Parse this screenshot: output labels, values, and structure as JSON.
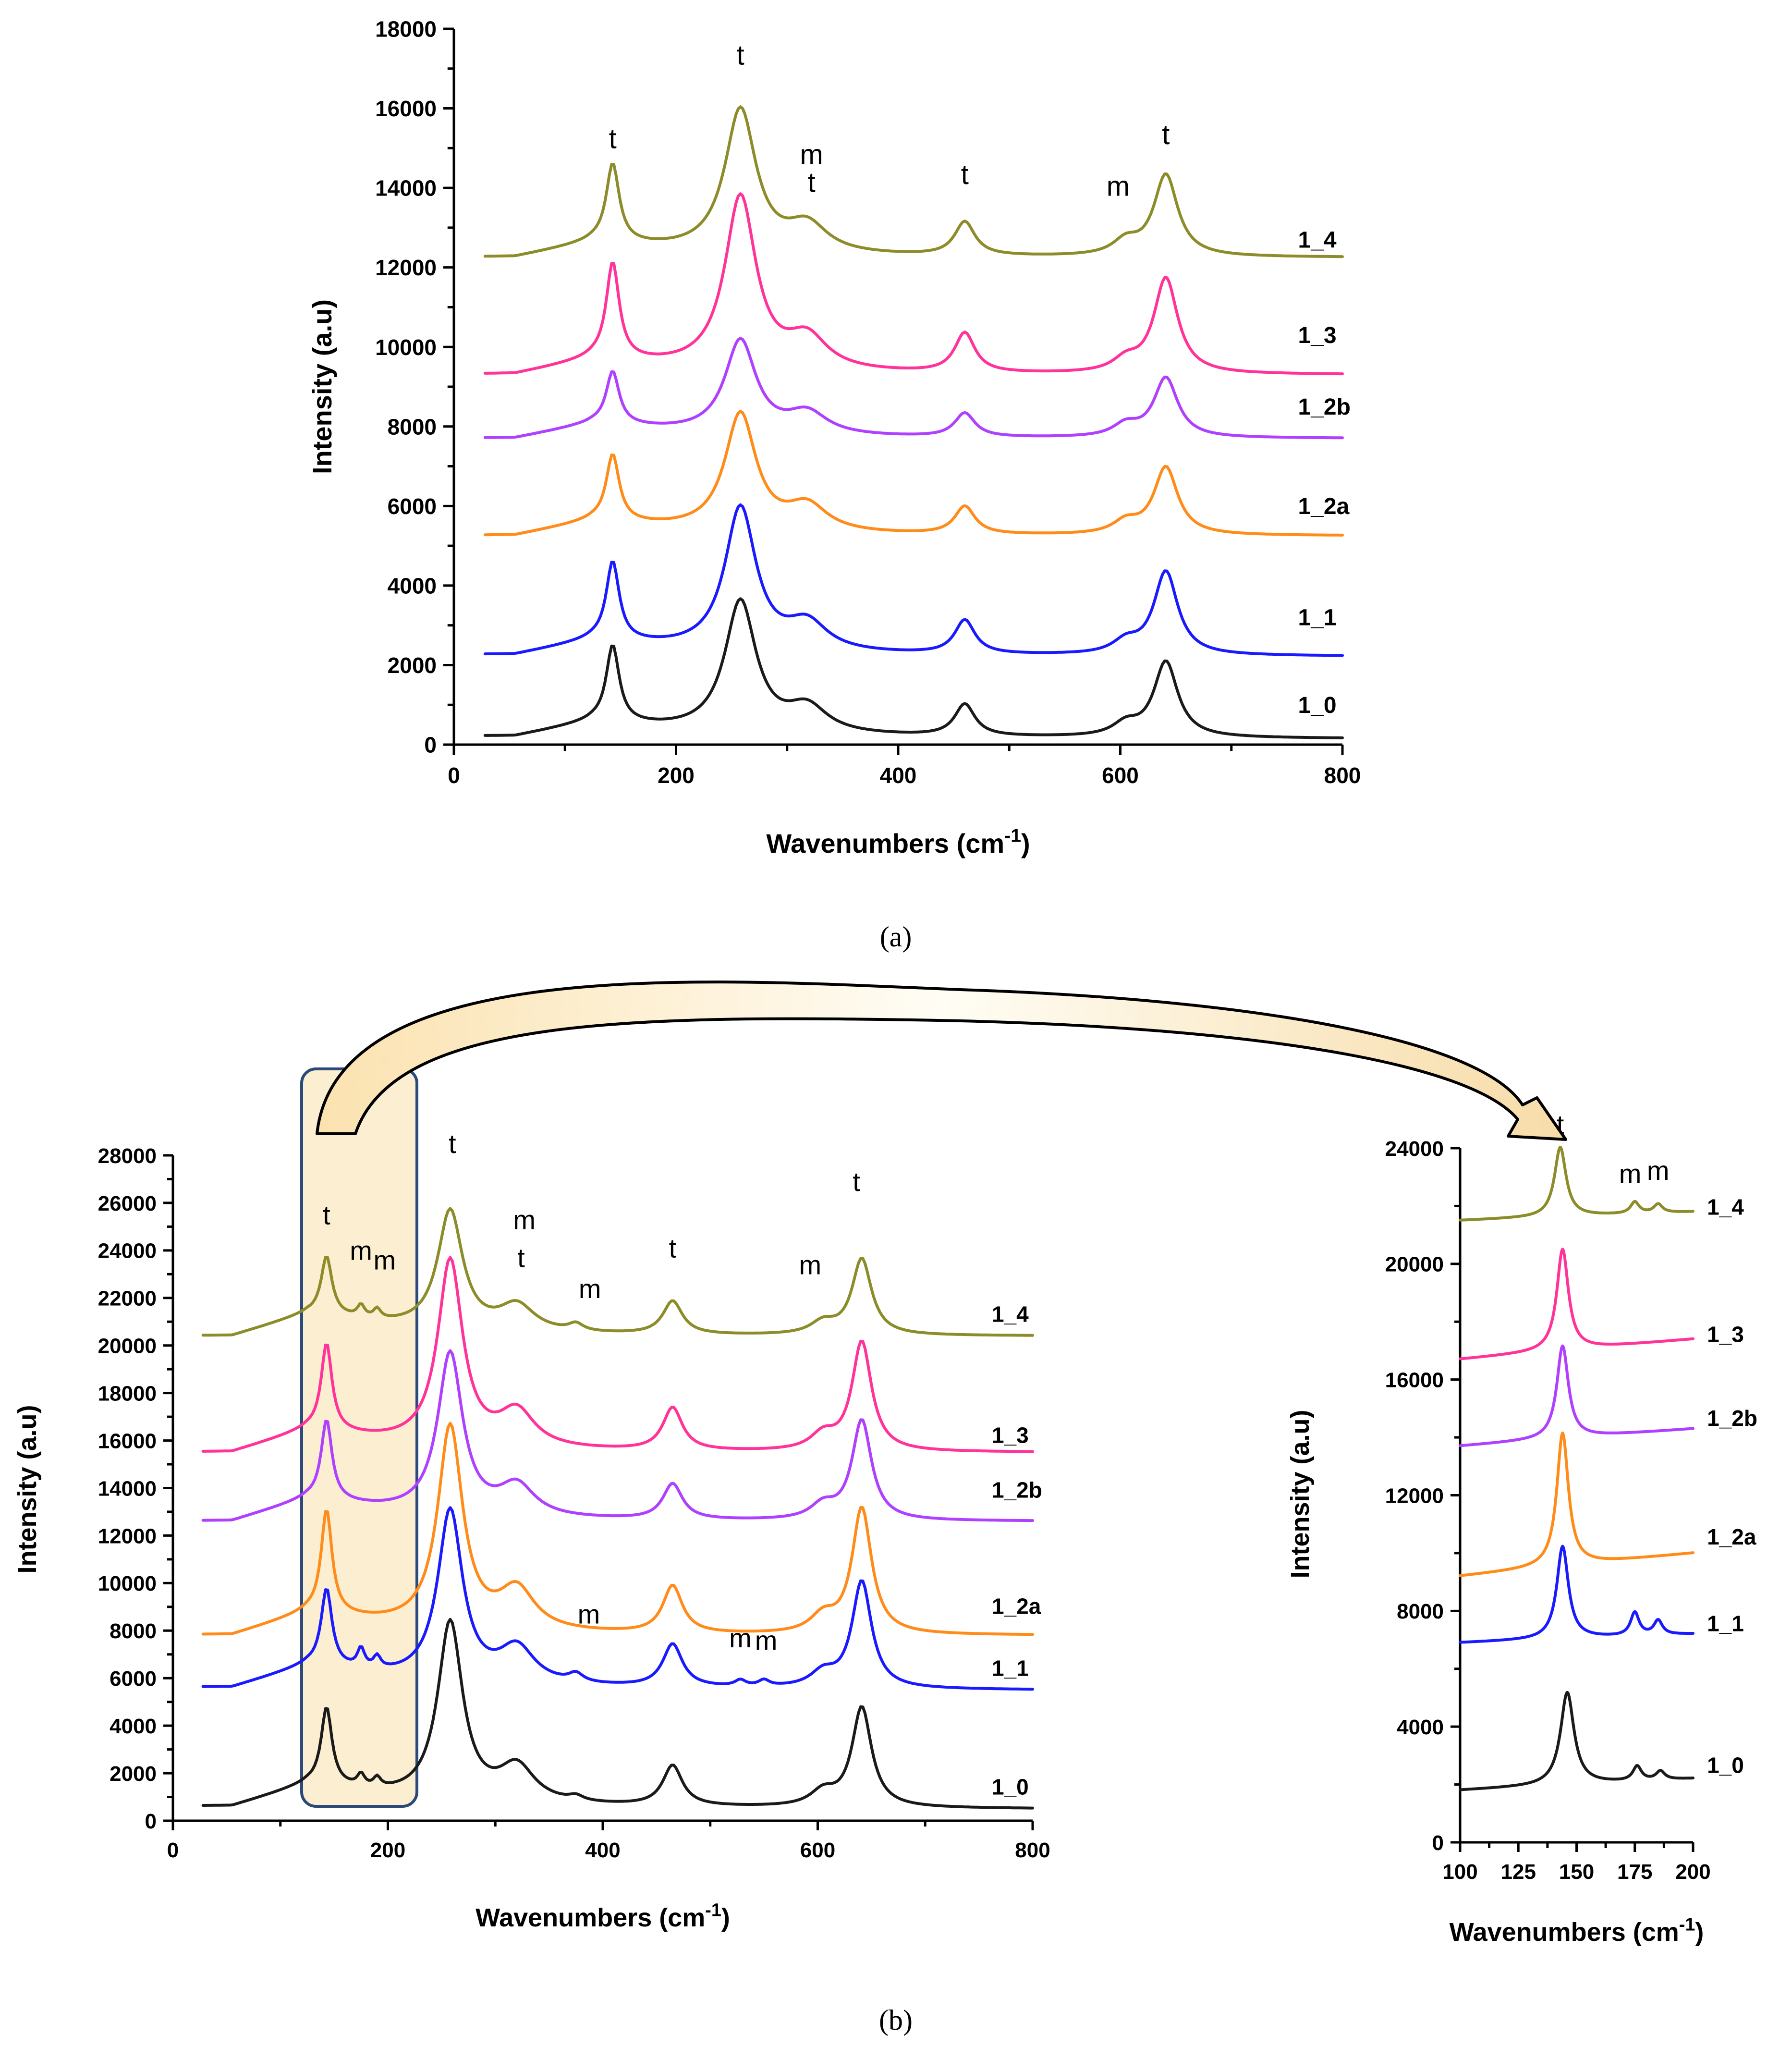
{
  "colors": {
    "1_0": "#1a1a1a",
    "1_1": "#1a1aff",
    "1_2a": "#ff8c1a",
    "1_2b": "#b040ff",
    "1_3": "#ff3399",
    "1_4": "#8c8c2a",
    "highlight_fill": "#fbe8c0",
    "highlight_stroke": "#2a4a7a"
  },
  "captions": {
    "a": "(a)",
    "b": "(b)"
  },
  "chart_data": [
    {
      "id": "a",
      "type": "line",
      "xlabel": "Wavenumbers (cm",
      "xlabel_sup": "-1",
      "xlabel_end": ")",
      "ylabel": "Intensity (a.u)",
      "xlim": [
        0,
        800
      ],
      "ylim": [
        0,
        18000
      ],
      "xticks": [
        0,
        200,
        400,
        600,
        800
      ],
      "yticks": [
        0,
        2000,
        4000,
        6000,
        8000,
        10000,
        12000,
        14000,
        16000,
        18000
      ],
      "series": [
        {
          "name": "1_0",
          "color_key": "1_0",
          "base": 200,
          "end": 150,
          "peaks": [
            [
              143,
              1900,
              7
            ],
            [
              258,
              3300,
              17
            ],
            [
              318,
              650,
              22
            ],
            [
              460,
              800,
              11
            ],
            [
              605,
              300,
              14
            ],
            [
              641,
              1900,
              13
            ]
          ],
          "label_x": 760,
          "label_y": 800
        },
        {
          "name": "1_1",
          "color_key": "1_1",
          "base": 2250,
          "end": 2220,
          "peaks": [
            [
              143,
              1950,
              7
            ],
            [
              258,
              3600,
              17
            ],
            [
              318,
              700,
              22
            ],
            [
              460,
              850,
              11
            ],
            [
              605,
              300,
              14
            ],
            [
              641,
              2100,
              13
            ]
          ],
          "label_x": 760,
          "label_y": 3000
        },
        {
          "name": "1_2a",
          "color_key": "1_2a",
          "base": 5250,
          "end": 5250,
          "peaks": [
            [
              143,
              1650,
              7
            ],
            [
              258,
              2950,
              17
            ],
            [
              318,
              650,
              22
            ],
            [
              460,
              700,
              11
            ],
            [
              605,
              300,
              14
            ],
            [
              641,
              1700,
              13
            ]
          ],
          "label_x": 760,
          "label_y": 5800
        },
        {
          "name": "1_2b",
          "color_key": "1_2b",
          "base": 7700,
          "end": 7700,
          "peaks": [
            [
              143,
              1300,
              7
            ],
            [
              258,
              2350,
              17
            ],
            [
              318,
              550,
              22
            ],
            [
              460,
              600,
              11
            ],
            [
              605,
              300,
              14
            ],
            [
              641,
              1500,
              13
            ]
          ],
          "label_x": 760,
          "label_y": 8300
        },
        {
          "name": "1_3",
          "color_key": "1_3",
          "base": 9300,
          "end": 9300,
          "peaks": [
            [
              143,
              2400,
              7
            ],
            [
              258,
              4350,
              17
            ],
            [
              318,
              800,
              22
            ],
            [
              460,
              1000,
              11
            ],
            [
              605,
              300,
              14
            ],
            [
              641,
              2400,
              13
            ]
          ],
          "label_x": 760,
          "label_y": 10100
        },
        {
          "name": "1_4",
          "color_key": "1_4",
          "base": 12250,
          "end": 12250,
          "peaks": [
            [
              143,
              1950,
              7
            ],
            [
              258,
              3600,
              17
            ],
            [
              318,
              700,
              22
            ],
            [
              460,
              850,
              11
            ],
            [
              605,
              350,
              14
            ],
            [
              641,
              2050,
              13
            ]
          ],
          "label_x": 760,
          "label_y": 12500
        }
      ],
      "peak_labels": [
        {
          "text": "t",
          "x": 143,
          "y": 15000
        },
        {
          "text": "t",
          "x": 258,
          "y": 17100
        },
        {
          "text": "m",
          "x": 322,
          "y": 14600
        },
        {
          "text": "t",
          "x": 322,
          "y": 13900
        },
        {
          "text": "t",
          "x": 460,
          "y": 14100
        },
        {
          "text": "m",
          "x": 598,
          "y": 13800
        },
        {
          "text": "t",
          "x": 641,
          "y": 15100
        }
      ]
    },
    {
      "id": "b-main",
      "type": "line",
      "xlabel": "Wavenumbers (cm",
      "xlabel_sup": "-1",
      "xlabel_end": ")",
      "ylabel": "Intensity (a.u)",
      "xlim": [
        0,
        800
      ],
      "ylim": [
        0,
        28000
      ],
      "xticks": [
        0,
        200,
        400,
        600,
        800
      ],
      "yticks": [
        0,
        2000,
        4000,
        6000,
        8000,
        10000,
        12000,
        14000,
        16000,
        18000,
        20000,
        22000,
        24000,
        26000,
        28000
      ],
      "highlight_range": [
        120,
        225
      ],
      "series": [
        {
          "name": "1_0",
          "color_key": "1_0",
          "base": 600,
          "end": 500,
          "peaks": [
            [
              143,
              3200,
              6
            ],
            [
              175,
              500,
              4
            ],
            [
              190,
              400,
              4
            ],
            [
              258,
              7500,
              14
            ],
            [
              320,
              1500,
              20
            ],
            [
              375,
              200,
              8
            ],
            [
              465,
              1700,
              11
            ],
            [
              605,
              600,
              14
            ],
            [
              641,
              4200,
              11
            ]
          ],
          "label_x": 762,
          "label_y": 1100
        },
        {
          "name": "1_1",
          "color_key": "1_1",
          "base": 5600,
          "end": 5500,
          "peaks": [
            [
              143,
              3200,
              6
            ],
            [
              175,
              800,
              4
            ],
            [
              190,
              500,
              4
            ],
            [
              258,
              7200,
              14
            ],
            [
              320,
              1500,
              20
            ],
            [
              375,
              350,
              8
            ],
            [
              465,
              1800,
              11
            ],
            [
              528,
              250,
              6
            ],
            [
              550,
              250,
              6
            ],
            [
              605,
              600,
              14
            ],
            [
              641,
              4500,
              11
            ]
          ],
          "label_x": 762,
          "label_y": 6100
        },
        {
          "name": "1_2a",
          "color_key": "1_2a",
          "base": 7800,
          "end": 7800,
          "peaks": [
            [
              143,
              4300,
              6
            ],
            [
              258,
              8500,
              14
            ],
            [
              320,
              1700,
              20
            ],
            [
              465,
              2000,
              11
            ],
            [
              605,
              700,
              14
            ],
            [
              641,
              5300,
              11
            ]
          ],
          "label_x": 762,
          "label_y": 8700
        },
        {
          "name": "1_2b",
          "color_key": "1_2b",
          "base": 12600,
          "end": 12600,
          "peaks": [
            [
              143,
              3300,
              6
            ],
            [
              258,
              6800,
              14
            ],
            [
              320,
              1300,
              20
            ],
            [
              465,
              1500,
              11
            ],
            [
              605,
              600,
              14
            ],
            [
              641,
              4200,
              11
            ]
          ],
          "label_x": 762,
          "label_y": 13600
        },
        {
          "name": "1_3",
          "color_key": "1_3",
          "base": 15500,
          "end": 15500,
          "peaks": [
            [
              143,
              3600,
              6
            ],
            [
              258,
              7800,
              14
            ],
            [
              320,
              1500,
              20
            ],
            [
              465,
              1800,
              11
            ],
            [
              605,
              650,
              14
            ],
            [
              641,
              4600,
              11
            ]
          ],
          "label_x": 762,
          "label_y": 15900
        },
        {
          "name": "1_4",
          "color_key": "1_4",
          "base": 20400,
          "end": 20400,
          "peaks": [
            [
              143,
              2400,
              6
            ],
            [
              175,
              500,
              4
            ],
            [
              190,
              400,
              4
            ],
            [
              258,
              5000,
              14
            ],
            [
              320,
              1100,
              20
            ],
            [
              375,
              300,
              8
            ],
            [
              465,
              1400,
              11
            ],
            [
              605,
              500,
              14
            ],
            [
              641,
              3200,
              11
            ]
          ],
          "label_x": 762,
          "label_y": 21000
        }
      ],
      "peak_labels": [
        {
          "text": "t",
          "x": 143,
          "y": 25100
        },
        {
          "text": "m",
          "x": 175,
          "y": 23600
        },
        {
          "text": "m",
          "x": 197,
          "y": 23200
        },
        {
          "text": "t",
          "x": 260,
          "y": 28100
        },
        {
          "text": "m",
          "x": 327,
          "y": 24900
        },
        {
          "text": "t",
          "x": 324,
          "y": 23300
        },
        {
          "text": "m",
          "x": 388,
          "y": 22000
        },
        {
          "text": "t",
          "x": 465,
          "y": 23700
        },
        {
          "text": "m",
          "x": 593,
          "y": 23000
        },
        {
          "text": "t",
          "x": 636,
          "y": 26500
        },
        {
          "text": "m",
          "x": 387,
          "y": 8300
        },
        {
          "text": "m",
          "x": 528,
          "y": 7300
        },
        {
          "text": "m",
          "x": 552,
          "y": 7200
        }
      ]
    },
    {
      "id": "b-inset",
      "type": "line",
      "xlabel": "Wavenumbers (cm",
      "xlabel_sup": "-1",
      "xlabel_end": ")",
      "ylabel": "Intensity (a.u)",
      "xlim": [
        100,
        200
      ],
      "ylim": [
        0,
        24000
      ],
      "xticks": [
        100,
        125,
        150,
        175,
        200
      ],
      "yticks": [
        0,
        4000,
        8000,
        12000,
        16000,
        20000,
        24000
      ],
      "series": [
        {
          "name": "1_0",
          "color_key": "1_0",
          "base": 1800,
          "end": 2200,
          "peaks": [
            [
              146,
              3200,
              3.5
            ],
            [
              176,
              500,
              2.2
            ],
            [
              186,
              300,
              2.2
            ]
          ],
          "label_x": 206,
          "label_y": 2400
        },
        {
          "name": "1_1",
          "color_key": "1_1",
          "base": 6900,
          "end": 7200,
          "peaks": [
            [
              144,
              3200,
              3
            ],
            [
              175,
              800,
              2.2
            ],
            [
              185,
              500,
              2.2
            ]
          ],
          "label_x": 206,
          "label_y": 7300
        },
        {
          "name": "1_2a",
          "color_key": "1_2a",
          "base": 9200,
          "end": 10000,
          "peaks": [
            [
              144,
              4600,
              3
            ]
          ],
          "label_x": 206,
          "label_y": 10300
        },
        {
          "name": "1_2b",
          "color_key": "1_2b",
          "base": 13700,
          "end": 14300,
          "peaks": [
            [
              144,
              3200,
              3
            ]
          ],
          "label_x": 206,
          "label_y": 14400
        },
        {
          "name": "1_3",
          "color_key": "1_3",
          "base": 16700,
          "end": 17400,
          "peaks": [
            [
              144,
              3500,
              3
            ]
          ],
          "label_x": 206,
          "label_y": 17300
        },
        {
          "name": "1_4",
          "color_key": "1_4",
          "base": 21500,
          "end": 21800,
          "peaks": [
            [
              143,
              2400,
              3
            ],
            [
              175,
              400,
              2.2
            ],
            [
              185,
              300,
              2.2
            ]
          ],
          "label_x": 206,
          "label_y": 21700
        }
      ],
      "peak_labels": [
        {
          "text": "t",
          "x": 143,
          "y": 24500
        },
        {
          "text": "m",
          "x": 173,
          "y": 22800
        },
        {
          "text": "m",
          "x": 185,
          "y": 22900
        }
      ]
    }
  ]
}
